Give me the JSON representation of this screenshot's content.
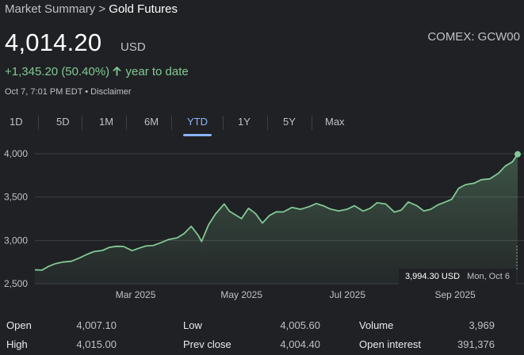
{
  "breadcrumb": {
    "parent": "Market Summary",
    "separator": ">",
    "current": "Gold Futures"
  },
  "quote": {
    "price": "4,014.20",
    "currency": "USD",
    "ticker": "COMEX: GCW00",
    "change": "+1,345.20 (50.40%)",
    "change_suffix": "year to date",
    "timestamp": "Oct 7, 7:01 PM EDT • Disclaimer"
  },
  "tabs": [
    {
      "label": "1D",
      "active": false
    },
    {
      "label": "5D",
      "active": false
    },
    {
      "label": "1M",
      "active": false
    },
    {
      "label": "6M",
      "active": false
    },
    {
      "label": "YTD",
      "active": true
    },
    {
      "label": "1Y",
      "active": false
    },
    {
      "label": "5Y",
      "active": false
    },
    {
      "label": "Max",
      "active": false
    }
  ],
  "colors": {
    "line": "#81c995",
    "accent": "#8ab4f8",
    "background": "#202124",
    "grid": "#3c4043"
  },
  "chart_data": {
    "type": "area",
    "y_ticks": [
      "4,000",
      "3,500",
      "3,000",
      "2,500"
    ],
    "y_tick_values": [
      4000,
      3500,
      3000,
      2500
    ],
    "ylim": [
      2500,
      4000
    ],
    "x_ticks": [
      "Mar 2025",
      "May 2025",
      "Jul 2025",
      "Sep 2025"
    ],
    "x_tick_dates": [
      "2025-03-01",
      "2025-05-01",
      "2025-07-01",
      "2025-09-01"
    ],
    "xlim": [
      "2025-01-02",
      "2025-10-07"
    ],
    "series": [
      {
        "x": [
          "2025-01-02",
          "2025-01-06",
          "2025-01-10",
          "2025-01-14",
          "2025-01-18",
          "2025-01-23",
          "2025-01-28",
          "2025-02-01",
          "2025-02-05",
          "2025-02-10",
          "2025-02-14",
          "2025-02-18",
          "2025-02-22",
          "2025-02-27",
          "2025-03-03",
          "2025-03-07",
          "2025-03-11",
          "2025-03-15",
          "2025-03-20",
          "2025-03-25",
          "2025-03-29",
          "2025-04-02",
          "2025-04-06",
          "2025-04-08",
          "2025-04-12",
          "2025-04-16",
          "2025-04-21",
          "2025-04-24",
          "2025-04-27",
          "2025-05-01",
          "2025-05-05",
          "2025-05-09",
          "2025-05-13",
          "2025-05-17",
          "2025-05-21",
          "2025-05-25",
          "2025-05-30",
          "2025-06-04",
          "2025-06-09",
          "2025-06-13",
          "2025-06-17",
          "2025-06-21",
          "2025-06-26",
          "2025-07-01",
          "2025-07-05",
          "2025-07-10",
          "2025-07-14",
          "2025-07-18",
          "2025-07-23",
          "2025-07-28",
          "2025-08-01",
          "2025-08-05",
          "2025-08-10",
          "2025-08-14",
          "2025-08-18",
          "2025-08-22",
          "2025-08-26",
          "2025-08-30",
          "2025-09-03",
          "2025-09-07",
          "2025-09-12",
          "2025-09-16",
          "2025-09-21",
          "2025-09-26",
          "2025-09-30",
          "2025-10-04",
          "2025-10-07"
        ],
        "y": [
          2660,
          2670,
          2700,
          2720,
          2750,
          2770,
          2800,
          2830,
          2870,
          2890,
          2920,
          2930,
          2930,
          2880,
          2910,
          2940,
          2940,
          2960,
          3010,
          3040,
          3080,
          3150,
          3060,
          3000,
          3180,
          3290,
          3420,
          3350,
          3300,
          3240,
          3370,
          3320,
          3200,
          3280,
          3330,
          3330,
          3380,
          3360,
          3390,
          3420,
          3400,
          3370,
          3340,
          3350,
          3400,
          3350,
          3370,
          3420,
          3420,
          3340,
          3350,
          3430,
          3400,
          3350,
          3360,
          3400,
          3440,
          3480,
          3600,
          3640,
          3660,
          3700,
          3710,
          3780,
          3860,
          3900,
          3994
        ]
      }
    ],
    "tooltip": {
      "value": "3,994.30 USD",
      "date": "Mon, Oct 6"
    }
  },
  "stats": {
    "open": {
      "label": "Open",
      "value": "4,007.10"
    },
    "high": {
      "label": "High",
      "value": "4,015.00"
    },
    "low": {
      "label": "Low",
      "value": "4,005.60"
    },
    "prev_close": {
      "label": "Prev close",
      "value": "4,004.40"
    },
    "volume": {
      "label": "Volume",
      "value": "3,969"
    },
    "open_interest": {
      "label": "Open interest",
      "value": "391,376"
    }
  }
}
